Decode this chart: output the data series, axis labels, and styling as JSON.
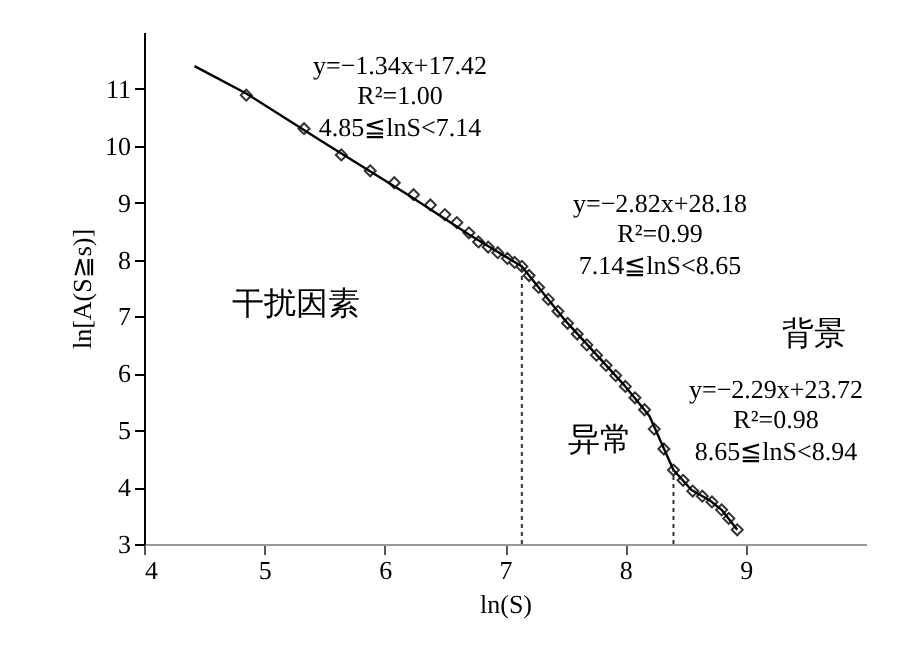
{
  "chart_data": {
    "type": "scatter",
    "xlabel": "ln(S)",
    "ylabel": "ln[A(S≧s)]",
    "xlim": [
      4,
      10
    ],
    "ylim": [
      3,
      12
    ],
    "xticks": [
      4,
      5,
      6,
      7,
      8,
      9
    ],
    "yticks": [
      3,
      4,
      5,
      6,
      7,
      8,
      9,
      10,
      11
    ],
    "grid": false,
    "marker": "diamond",
    "line_style": "solid",
    "series": [
      {
        "type": "scatter",
        "color": "#333333",
        "x": [
          4.85,
          5.33,
          5.64,
          5.88,
          6.08,
          6.24,
          6.38,
          6.5,
          6.6,
          6.7,
          6.78,
          6.86,
          6.94,
          7.02,
          7.08,
          7.14,
          7.2,
          7.28,
          7.36,
          7.44,
          7.52,
          7.6,
          7.68,
          7.76,
          7.84,
          7.92,
          8.0,
          8.08,
          8.16,
          8.24,
          8.32,
          8.4,
          8.48,
          8.56,
          8.64,
          8.72,
          8.8,
          8.86,
          8.93
        ],
        "values": [
          10.89,
          10.3,
          9.84,
          9.56,
          9.35,
          9.14,
          8.96,
          8.79,
          8.65,
          8.47,
          8.31,
          8.22,
          8.12,
          8.02,
          7.95,
          7.88,
          7.72,
          7.51,
          7.3,
          7.09,
          6.88,
          6.69,
          6.5,
          6.32,
          6.14,
          5.96,
          5.77,
          5.57,
          5.36,
          5.02,
          4.67,
          4.3,
          4.12,
          3.93,
          3.84,
          3.74,
          3.6,
          3.45,
          3.25
        ]
      },
      {
        "type": "line",
        "marker": "none",
        "color": "#000000",
        "x": [
          4.42,
          4.85,
          5.5,
          6.2,
          6.7,
          7.14,
          7.5,
          8.0,
          8.2,
          8.4,
          8.55,
          8.7,
          8.8,
          8.93
        ],
        "values": [
          11.4,
          10.92,
          10.05,
          9.13,
          8.44,
          7.88,
          6.93,
          5.77,
          5.25,
          4.3,
          3.95,
          3.77,
          3.6,
          3.25
        ]
      }
    ],
    "ref_lines": [
      {
        "axis": "x",
        "value": 7.14,
        "color": "#333333",
        "line_style": "dotted"
      },
      {
        "axis": "x",
        "value": 8.4,
        "color": "#333333",
        "line_style": "dotted"
      }
    ],
    "annotations": [
      "y=−1.34x+17.42",
      "R²=1.00",
      "4.85≦lnS<7.14",
      "y=−2.82x+28.18",
      "R²=0.99",
      "7.14≦lnS<8.65",
      "y=−2.29x+23.72",
      "R²=0.98",
      "8.65≦lnS<8.94",
      "干扰因素",
      "异常",
      "背景"
    ]
  }
}
